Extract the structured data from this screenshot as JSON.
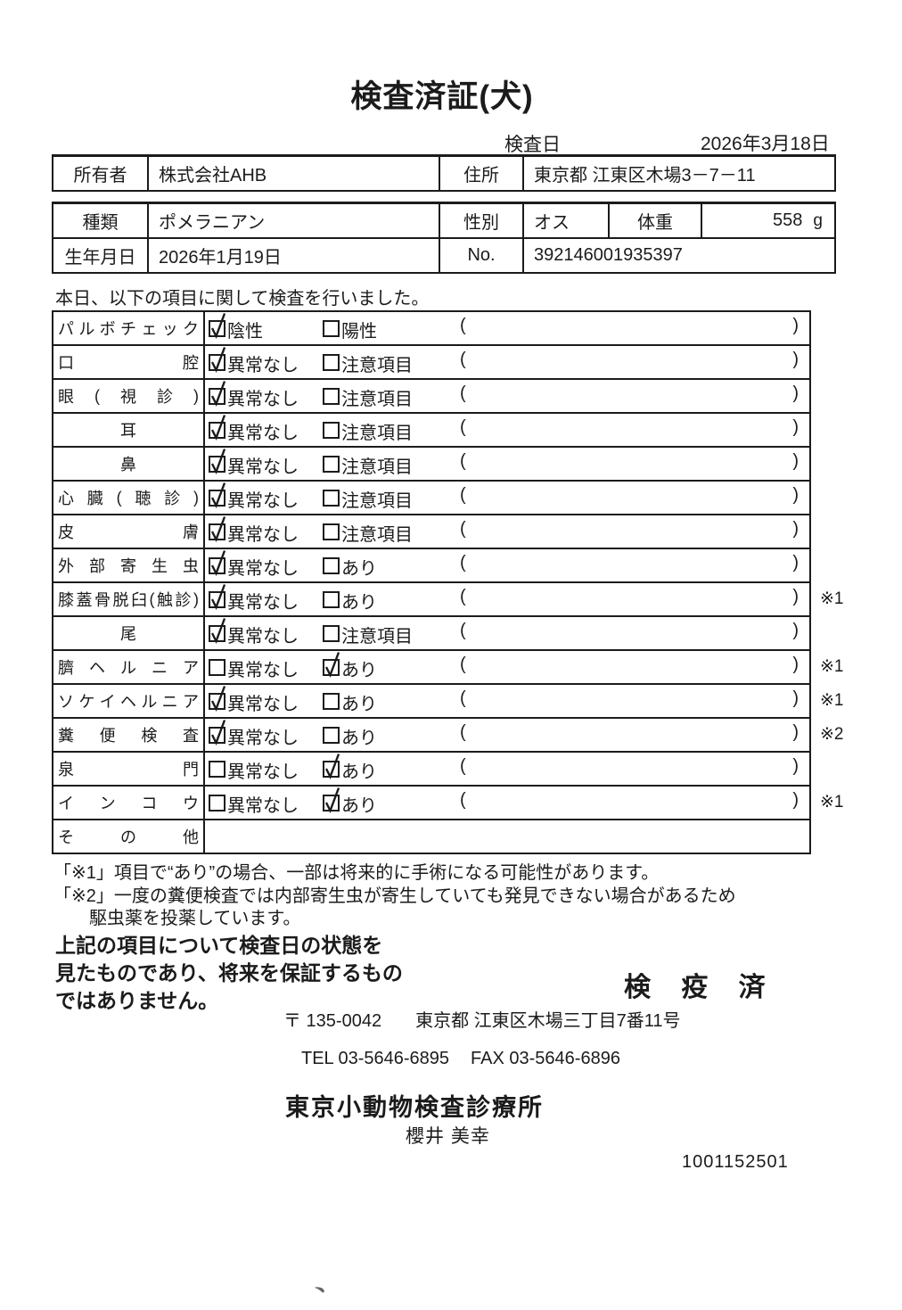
{
  "page": {
    "title": "検査済証(犬)",
    "inspection_date_label": "検査日",
    "inspection_date": "2026年3月18日",
    "intro": "本日、以下の項目に関して検査を行いました。"
  },
  "info": {
    "owner_label": "所有者",
    "owner": "株式会社AHB",
    "address_label": "住所",
    "address": "東京都 江東区木場3－7－11",
    "breed_label": "種類",
    "breed": "ポメラニアン",
    "sex_label": "性別",
    "sex": "オス",
    "weight_label": "体重",
    "weight": "558",
    "weight_unit": "g",
    "birthdate_label": "生年月日",
    "birthdate": "2026年1月19日",
    "no_label": "No.",
    "no": "392146001935397"
  },
  "checklist": {
    "paren_open": "(",
    "paren_close": ")",
    "rows": [
      {
        "item": "パルボチェック",
        "center": false,
        "opt1": "陰性",
        "opt2": "陽性",
        "checked": 1,
        "note": ""
      },
      {
        "item": "口腔",
        "center": false,
        "opt1": "異常なし",
        "opt2": "注意項目",
        "checked": 1,
        "note": ""
      },
      {
        "item": "眼(視診)",
        "center": false,
        "opt1": "異常なし",
        "opt2": "注意項目",
        "checked": 1,
        "note": ""
      },
      {
        "item": "耳",
        "center": true,
        "opt1": "異常なし",
        "opt2": "注意項目",
        "checked": 1,
        "note": ""
      },
      {
        "item": "鼻",
        "center": true,
        "opt1": "異常なし",
        "opt2": "注意項目",
        "checked": 1,
        "note": ""
      },
      {
        "item": "心臓(聴診)",
        "center": false,
        "opt1": "異常なし",
        "opt2": "注意項目",
        "checked": 1,
        "note": ""
      },
      {
        "item": "皮膚",
        "center": false,
        "opt1": "異常なし",
        "opt2": "注意項目",
        "checked": 1,
        "note": ""
      },
      {
        "item": "外部寄生虫",
        "center": false,
        "opt1": "異常なし",
        "opt2": "あり",
        "checked": 1,
        "note": ""
      },
      {
        "item": "膝蓋骨脱臼(触診)",
        "center": false,
        "opt1": "異常なし",
        "opt2": "あり",
        "checked": 1,
        "note": "※1"
      },
      {
        "item": "尾",
        "center": true,
        "opt1": "異常なし",
        "opt2": "注意項目",
        "checked": 1,
        "note": ""
      },
      {
        "item": "臍ヘルニア",
        "center": false,
        "opt1": "異常なし",
        "opt2": "あり",
        "checked": 2,
        "note": "※1"
      },
      {
        "item": "ソケイヘルニア",
        "center": false,
        "opt1": "異常なし",
        "opt2": "あり",
        "checked": 1,
        "note": "※1"
      },
      {
        "item": "糞便検査",
        "center": false,
        "opt1": "異常なし",
        "opt2": "あり",
        "checked": 1,
        "note": "※2"
      },
      {
        "item": "泉門",
        "center": false,
        "opt1": "異常なし",
        "opt2": "あり",
        "checked": 2,
        "note": ""
      },
      {
        "item": "インコウ",
        "center": false,
        "opt1": "異常なし",
        "opt2": "あり",
        "checked": 2,
        "note": "※1"
      },
      {
        "item": "その他",
        "center": false,
        "opt1": null,
        "opt2": null,
        "checked": 0,
        "note": ""
      }
    ]
  },
  "footnotes": {
    "line1": "「※1」項目で“あり”の場合、一部は将来的に手術になる可能性があります。",
    "line2": "「※2」一度の糞便検査では内部寄生虫が寄生していても発見できない場合があるため",
    "line3": "駆虫薬を投薬しています。"
  },
  "statement": {
    "line1": "上記の項目について検査日の状態を",
    "line2": "見たものであり、将来を保証するもの",
    "line3": "ではありません。"
  },
  "stamp": "検 疫 済",
  "footer": {
    "postal": "〒 135-0042",
    "address": "東京都 江東区木場三丁目7番11号",
    "tel": "TEL 03-5646-6895",
    "fax": "FAX 03-5646-6896",
    "clinic": "東京小動物検査診療所",
    "examiner": "櫻井 美幸",
    "code": "1001152501",
    "artifact": "﹅"
  },
  "colors": {
    "ink": "#1b1b1b",
    "paper": "#ffffff"
  }
}
